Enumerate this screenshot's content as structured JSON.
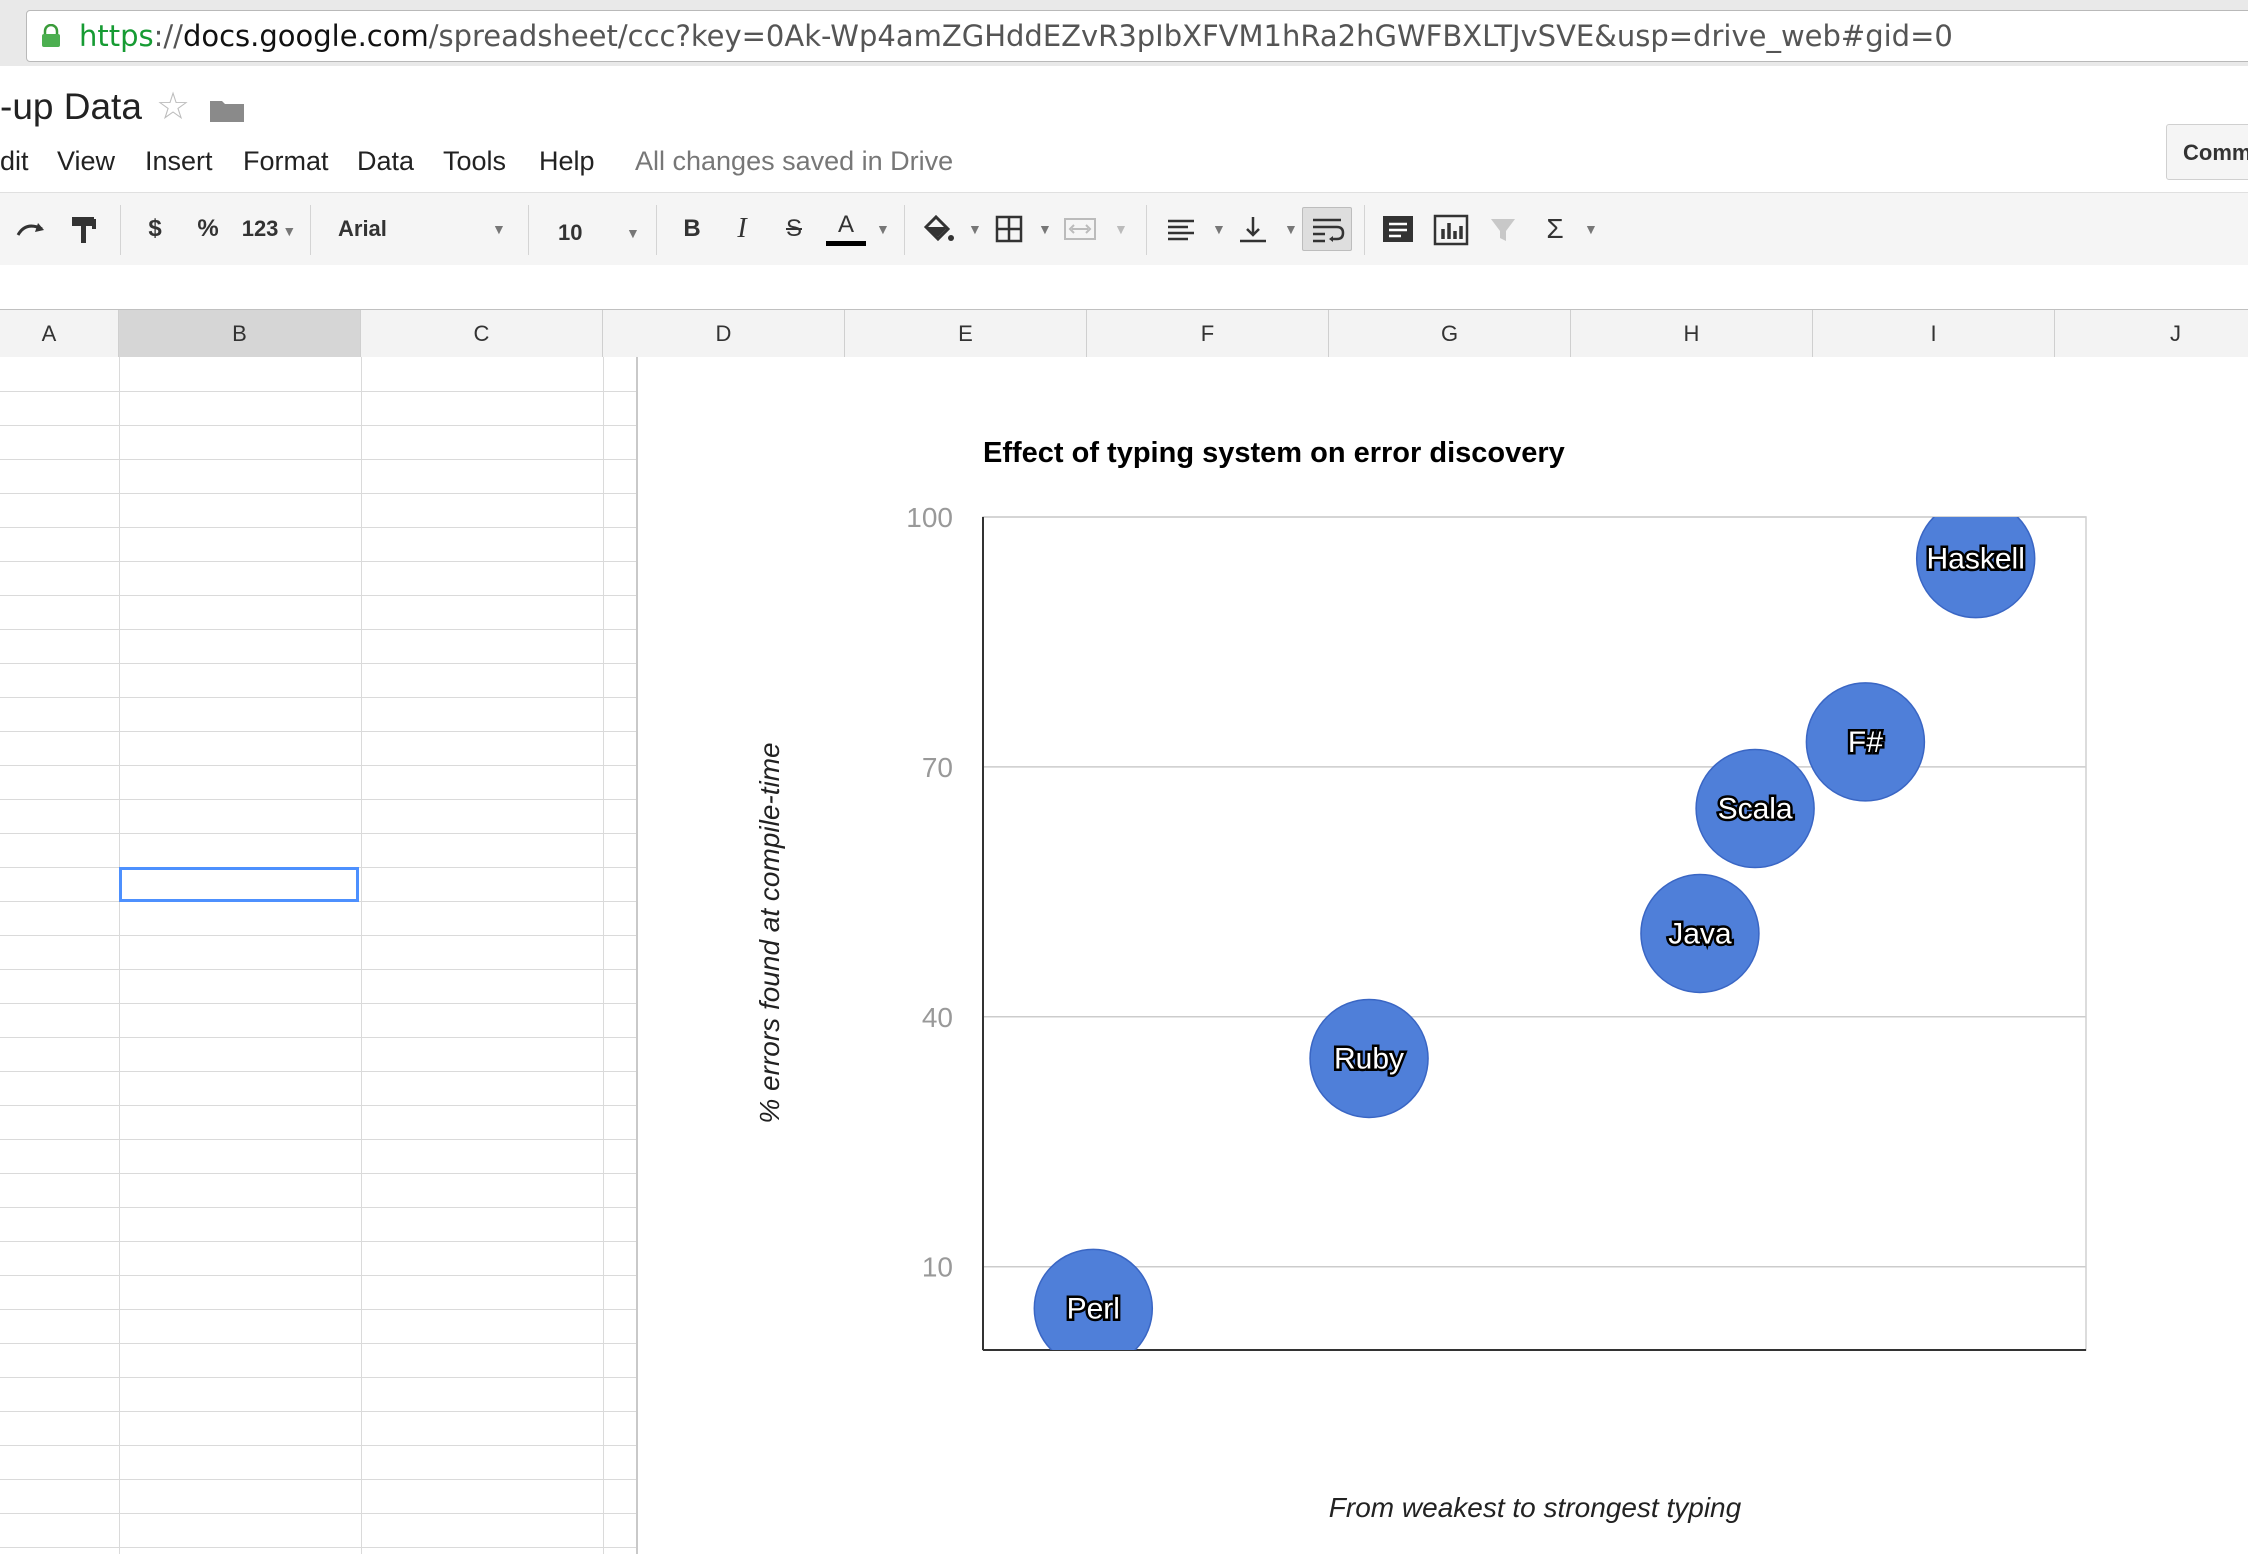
{
  "browser": {
    "url_scheme": "https",
    "url_sep": "://",
    "url_host": "docs.google.com",
    "url_path": "/spreadsheet/ccc?key=0Ak-Wp4amZGHddEZvR3pIbXFVM1hRa2hGWFBXLTJvSVE&usp=drive_web#gid=0"
  },
  "document": {
    "title": "-up Data",
    "star_icon": "star-icon",
    "folder_icon": "folder-icon"
  },
  "menu": {
    "items": [
      "dit",
      "View",
      "Insert",
      "Format",
      "Data",
      "Tools",
      "Help"
    ],
    "saved_status": "All changes saved in Drive"
  },
  "comments_button": "Comm",
  "toolbar": {
    "currency": "$",
    "percent": "%",
    "number_format": "123",
    "font_family": "Arial",
    "font_size": "10",
    "bold": "B",
    "italic": "I",
    "strikethrough": "S",
    "text_color": "A",
    "sum": "Σ"
  },
  "sheet": {
    "columns": [
      "A",
      "B",
      "C",
      "D",
      "E",
      "F",
      "G",
      "H",
      "I",
      "J"
    ],
    "selected_column": "B"
  },
  "colors": {
    "bubble": "#4f7fd9",
    "bubble_stroke": "#3a66c4",
    "gridline": "#cccccc",
    "axis_text": "#999999",
    "selection": "#4d90fe"
  },
  "chart_data": {
    "type": "scatter",
    "title": "Effect of typing system on error discovery",
    "xlabel": "From weakest to strongest typing",
    "ylabel": "% errors found at compile-time",
    "ylim": [
      0,
      100
    ],
    "xlim": [
      0,
      100
    ],
    "yticks": [
      10,
      40,
      70,
      100
    ],
    "grid": true,
    "points": [
      {
        "label": "Perl",
        "x": 10,
        "y": 5
      },
      {
        "label": "Ruby",
        "x": 35,
        "y": 35
      },
      {
        "label": "Java",
        "x": 65,
        "y": 50
      },
      {
        "label": "Scala",
        "x": 70,
        "y": 65
      },
      {
        "label": "F#",
        "x": 80,
        "y": 73
      },
      {
        "label": "Haskell",
        "x": 90,
        "y": 95
      }
    ]
  }
}
